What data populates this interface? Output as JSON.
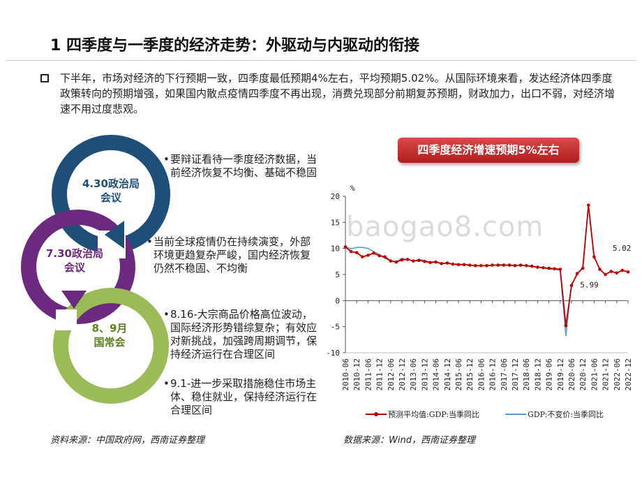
{
  "title": "1 四季度与一季度的经济走势：外驱动与内驱动的衔接",
  "intro": "下半年，市场对经济的下行预期一致，四季度最低预期4%左右，平均预期5.02%。从国际环境来看，发达经济体四季度政策转向的预期增强，如果国内散点疫情四季度不再出现，消费兑现部分前期复苏预期，财政加力，出口不弱，对经济增速不用过度悲观。",
  "circles": [
    {
      "label_line1": "4.30政治局",
      "label_line2": "会议",
      "color": "#1f4e79"
    },
    {
      "label_line1": "7.30政治局",
      "label_line2": "会议",
      "color": "#6b2a7d"
    },
    {
      "label_line1": "8、9月",
      "label_line2": "国常会",
      "color": "#9bbb59"
    }
  ],
  "notes": [
    "要辩证看待一季度经济数据，当前经济恢复不均衡、基础不稳固",
    "当前全球疫情仍在持续演变，外部环境更趋复杂严峻，国内经济恢复仍然不稳固、不均衡",
    "8.16-大宗商品价格高位波动，国际经济形势错综复杂；有效应对新挑战，加强跨周期调节，保持经济运行在合理区间",
    "9.1-进一步采取措施稳住市场主体、稳住就业，保持经济运行在合理区间"
  ],
  "bullet_char": "•",
  "source_left": "资料来源：中国政府网，西南证券整理",
  "source_right": "数据来源：Wind，西南证券整理",
  "banner": "四季度经济增速预期5%左右",
  "watermark": "baogao8.com",
  "chart_data": {
    "type": "line",
    "ylabel": "%",
    "ylim": [
      -10,
      20
    ],
    "yticks": [
      "-10",
      "-5",
      "0",
      "5",
      "10",
      "15",
      "20"
    ],
    "x": [
      "2010-06",
      "2010-09",
      "2010-12",
      "2011-03",
      "2011-06",
      "2011-09",
      "2011-12",
      "2012-03",
      "2012-06",
      "2012-09",
      "2012-12",
      "2013-03",
      "2013-06",
      "2013-09",
      "2013-12",
      "2014-03",
      "2014-06",
      "2014-09",
      "2014-12",
      "2015-03",
      "2015-06",
      "2015-09",
      "2015-12",
      "2016-03",
      "2016-06",
      "2016-09",
      "2016-12",
      "2017-03",
      "2017-06",
      "2017-09",
      "2017-12",
      "2018-03",
      "2018-06",
      "2018-09",
      "2018-12",
      "2019-03",
      "2019-06",
      "2019-09",
      "2019-12",
      "2020-03",
      "2020-06",
      "2020-09",
      "2020-12",
      "2021-03",
      "2021-06",
      "2021-09",
      "2021-12",
      "2022-03",
      "2022-06",
      "2022-09",
      "2022-12"
    ],
    "xtick_labels": [
      "2010-06",
      "2010-12",
      "2011-06",
      "2011-12",
      "2012-06",
      "2012-12",
      "2013-06",
      "2013-12",
      "2014-06",
      "2014-12",
      "2015-06",
      "2015-12",
      "2016-06",
      "2016-12",
      "2017-06",
      "2017-12",
      "2018-06",
      "2018-12",
      "2019-06",
      "2019-12",
      "2020-06",
      "2020-12",
      "2021-06",
      "2021-12",
      "2022-06",
      "2022-12"
    ],
    "series": [
      {
        "name": "预测平均值:GDP:当季同比",
        "color": "#c00000",
        "values": [
          10.3,
          9.4,
          9.2,
          8.4,
          8.7,
          9.1,
          8.6,
          8.4,
          7.6,
          7.4,
          7.8,
          7.9,
          7.6,
          7.7,
          7.5,
          7.3,
          7.4,
          7.1,
          7.2,
          7.0,
          6.9,
          6.9,
          6.8,
          6.7,
          6.7,
          6.7,
          6.8,
          6.8,
          6.8,
          6.8,
          6.7,
          6.8,
          6.7,
          6.6,
          6.4,
          6.3,
          6.2,
          6.1,
          6.0,
          -4.8,
          2.9,
          5.2,
          6.2,
          18.3,
          8.4,
          6.0,
          5.0,
          5.6,
          5.3,
          5.8,
          5.5
        ]
      },
      {
        "name": "GDP:不变价:当季同比",
        "color": "#5b9bd5",
        "values": [
          10.3,
          9.9,
          10.2,
          10.2,
          10.0,
          9.4,
          8.8,
          8.1,
          7.6,
          7.5,
          8.1,
          7.9,
          7.6,
          7.9,
          7.7,
          7.4,
          7.5,
          7.1,
          7.3,
          7.0,
          7.0,
          6.9,
          6.8,
          6.7,
          6.7,
          6.7,
          6.8,
          6.9,
          6.9,
          6.8,
          6.8,
          6.8,
          6.7,
          6.5,
          6.4,
          6.3,
          6.0,
          6.0,
          5.8,
          -6.8,
          3.2,
          4.9,
          6.5,
          18.3,
          7.9,
          null,
          null,
          null,
          null,
          null,
          null
        ]
      }
    ],
    "annotations": [
      {
        "text": "5.02",
        "x": "2022-09",
        "y": 5.02
      },
      {
        "text": "5.99",
        "x": "2021-03",
        "y": 5.99
      }
    ]
  }
}
